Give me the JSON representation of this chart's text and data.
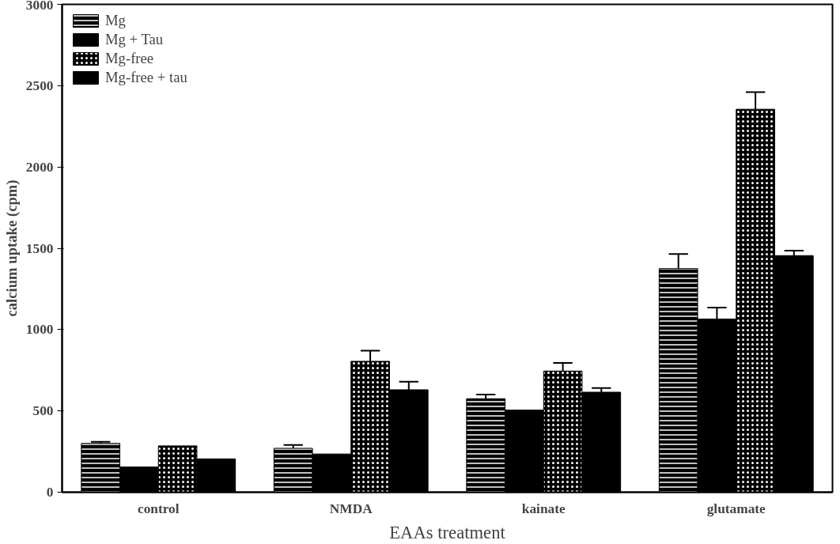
{
  "chart_data": {
    "type": "bar",
    "xlabel": "EAAs treatment",
    "ylabel": "calcium uptake (cpm)",
    "categories": [
      "control",
      "NMDA",
      "kainate",
      "glutamate"
    ],
    "series": [
      {
        "name": "Mg",
        "color": "#000000",
        "values": [
          300,
          270,
          575,
          1375
        ],
        "errors": [
          [
            300,
            310
          ],
          [
            270,
            290
          ],
          [
            575,
            600
          ],
          [
            1375,
            1465
          ]
        ]
      },
      {
        "name": "Mg + Tau",
        "color": "#000000",
        "values": [
          155,
          235,
          505,
          1065
        ],
        "errors": [
          null,
          null,
          null,
          [
            1065,
            1135
          ]
        ]
      },
      {
        "name": "Mg-free",
        "color": "#000000",
        "values": [
          285,
          805,
          745,
          2355
        ],
        "errors": [
          null,
          [
            805,
            870
          ],
          [
            745,
            795
          ],
          [
            2355,
            2460
          ]
        ]
      },
      {
        "name": "Mg-free + tau",
        "color": "#000000",
        "values": [
          205,
          630,
          615,
          1455
        ],
        "errors": [
          null,
          [
            630,
            680
          ],
          [
            615,
            640
          ],
          [
            1455,
            1485
          ]
        ]
      }
    ],
    "ylim": [
      0,
      3000
    ],
    "yticks": [
      0,
      500,
      1000,
      1500,
      2000,
      2500,
      3000
    ],
    "grid": false,
    "legend": "top left"
  }
}
